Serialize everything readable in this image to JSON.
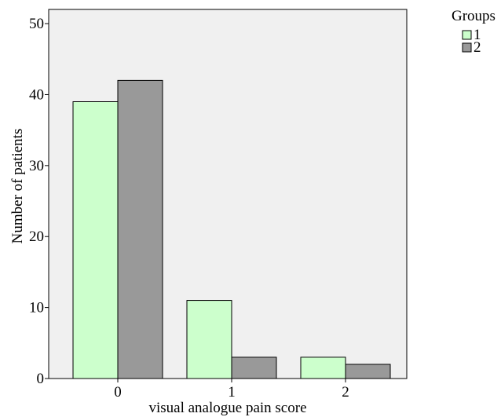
{
  "chart_data": {
    "type": "bar",
    "categories": [
      "0",
      "1",
      "2"
    ],
    "series": [
      {
        "name": "1",
        "values": [
          39,
          11,
          3
        ],
        "color": "#ccffcc"
      },
      {
        "name": "2",
        "values": [
          42,
          3,
          2
        ],
        "color": "#999999"
      }
    ],
    "xlabel": "visual analogue pain score",
    "ylabel": "Number of patients",
    "ylim": [
      0,
      52
    ],
    "yticks": [
      0,
      10,
      20,
      30,
      40,
      50
    ],
    "legend_title": "Groups",
    "legend_position": "top-right",
    "grid": false,
    "plot_background": "#f0f0f0"
  }
}
